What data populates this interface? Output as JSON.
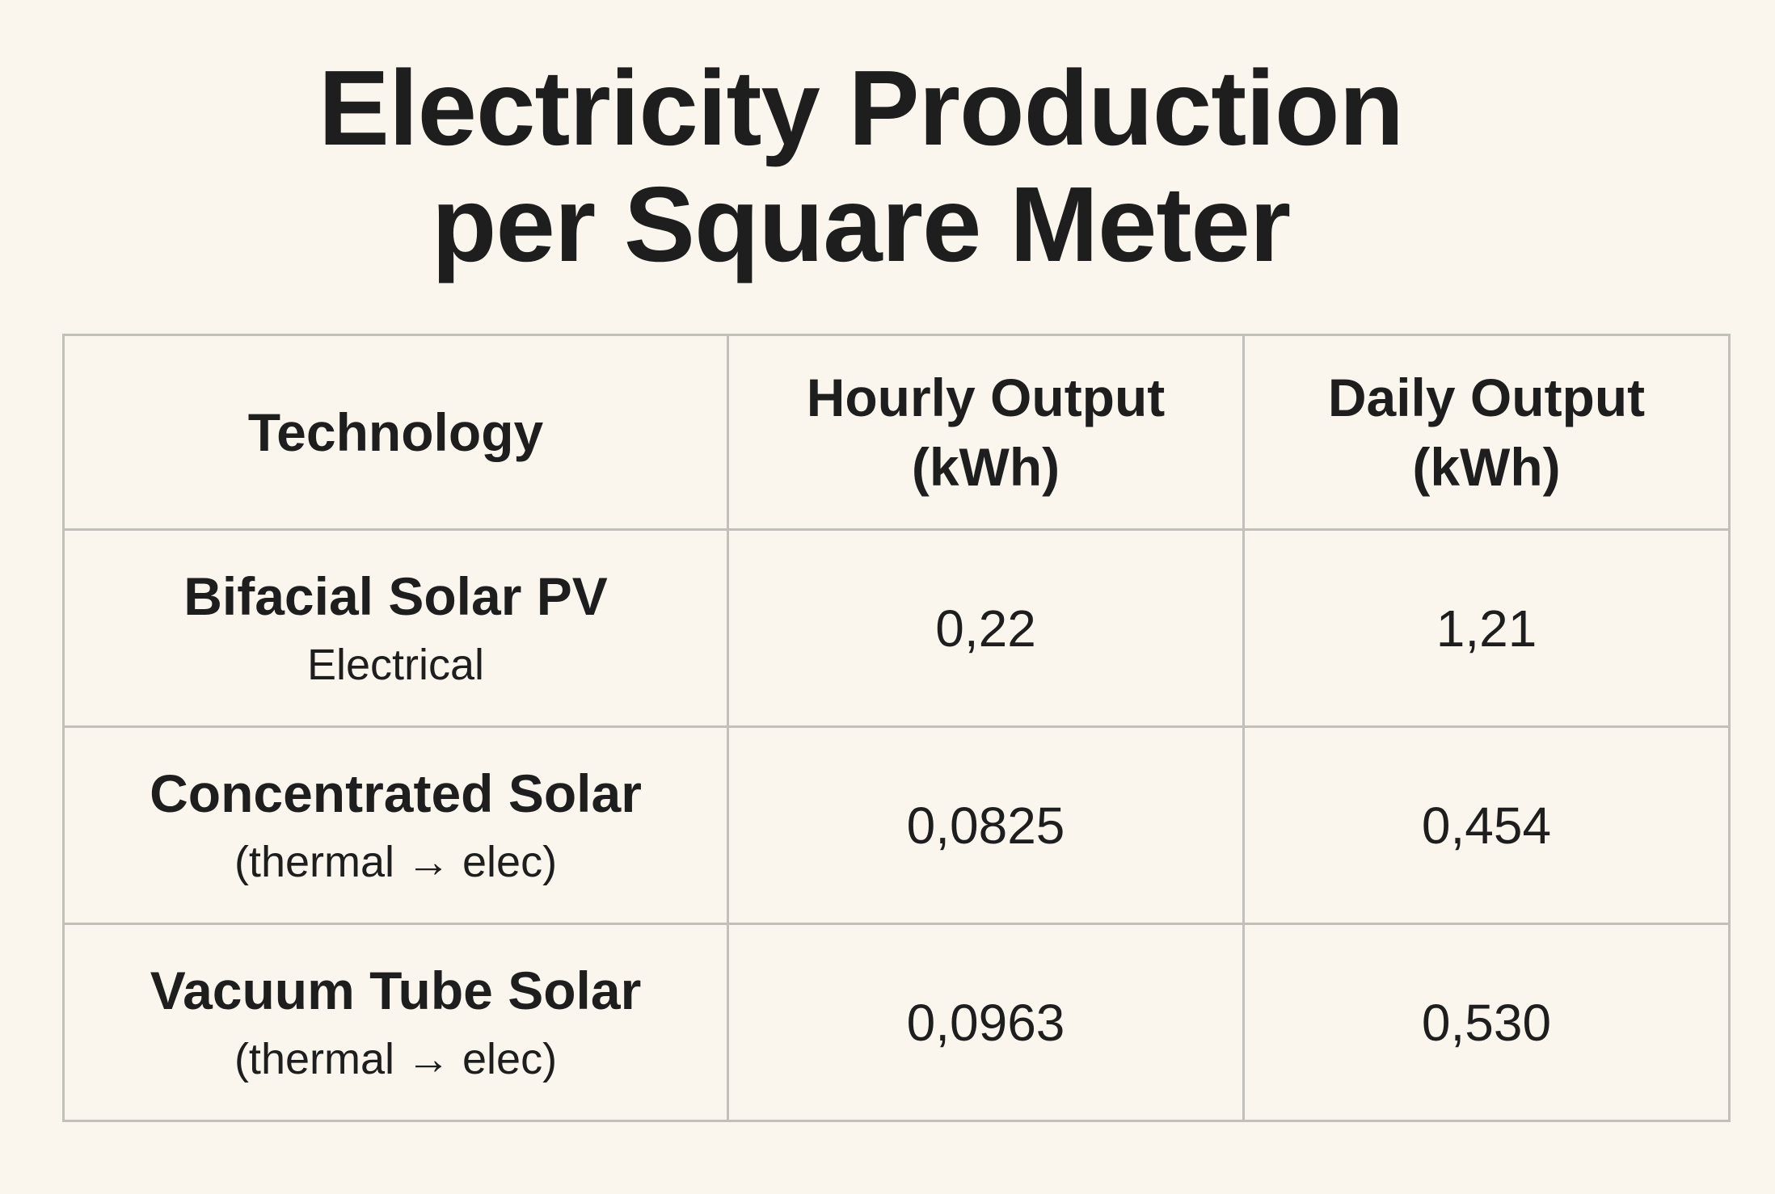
{
  "header": {
    "title_lines": [
      "Electricity Production",
      "per Square Meter"
    ]
  },
  "table": {
    "columns": [
      [
        "Technology"
      ],
      [
        "Hourly Output",
        "(kWh)"
      ],
      [
        "Daily Output",
        "(kWh)"
      ]
    ],
    "rows": [
      {
        "technology": "Bifacial Solar PV",
        "note": "Electrical",
        "hourly": "0,22",
        "daily": "1,21"
      },
      {
        "technology": "Concentrated Solar",
        "note": "(thermal → elec)",
        "hourly": "0,0825",
        "daily": "0,454"
      },
      {
        "technology": "Vacuum Tube Solar",
        "note": "(thermal → elec)",
        "hourly": "0,0963",
        "daily": "0,530"
      }
    ]
  }
}
